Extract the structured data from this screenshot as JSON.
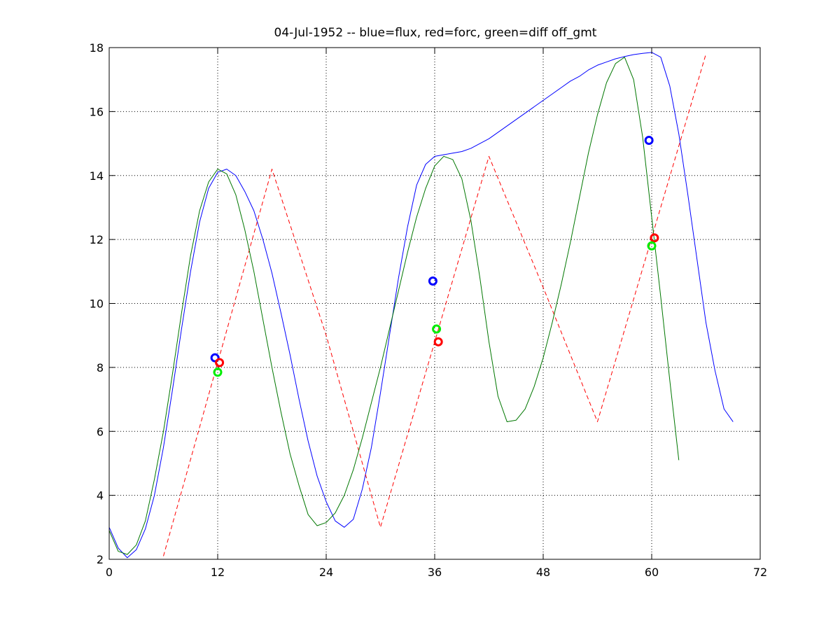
{
  "chart_data": {
    "type": "line",
    "title": "04-Jul-1952 -- blue=flux, red=forc, green=diff off_gmt",
    "xlabel": "",
    "ylabel": "",
    "xlim": [
      0,
      72
    ],
    "ylim": [
      2,
      18
    ],
    "xticks": [
      0,
      12,
      24,
      36,
      48,
      60,
      72
    ],
    "yticks": [
      2,
      4,
      6,
      8,
      10,
      12,
      14,
      16,
      18
    ],
    "grid": true,
    "series": [
      {
        "color": "#0000ff",
        "style": "solid",
        "points": [
          [
            0,
            3.0
          ],
          [
            1,
            2.35
          ],
          [
            2,
            2.05
          ],
          [
            3,
            2.3
          ],
          [
            4,
            2.95
          ],
          [
            5,
            4.0
          ],
          [
            6,
            5.5
          ],
          [
            7,
            7.3
          ],
          [
            8,
            9.2
          ],
          [
            9,
            11.0
          ],
          [
            10,
            12.55
          ],
          [
            11,
            13.6
          ],
          [
            12,
            14.1
          ],
          [
            13,
            14.2
          ],
          [
            14,
            14.0
          ],
          [
            15,
            13.5
          ],
          [
            16,
            12.9
          ],
          [
            17,
            12.0
          ],
          [
            18,
            10.95
          ],
          [
            19,
            9.7
          ],
          [
            20,
            8.4
          ],
          [
            21,
            7.0
          ],
          [
            22,
            5.7
          ],
          [
            23,
            4.6
          ],
          [
            24,
            3.8
          ],
          [
            25,
            3.2
          ],
          [
            26,
            3.0
          ],
          [
            27,
            3.25
          ],
          [
            28,
            4.2
          ],
          [
            29,
            5.5
          ],
          [
            30,
            7.2
          ],
          [
            31,
            9.0
          ],
          [
            32,
            10.8
          ],
          [
            33,
            12.4
          ],
          [
            34,
            13.7
          ],
          [
            35,
            14.35
          ],
          [
            36,
            14.6
          ],
          [
            37,
            14.65
          ],
          [
            38,
            14.7
          ],
          [
            39,
            14.75
          ],
          [
            40,
            14.85
          ],
          [
            41,
            15.0
          ],
          [
            42,
            15.15
          ],
          [
            43,
            15.35
          ],
          [
            44,
            15.55
          ],
          [
            45,
            15.75
          ],
          [
            46,
            15.95
          ],
          [
            47,
            16.15
          ],
          [
            48,
            16.35
          ],
          [
            49,
            16.55
          ],
          [
            50,
            16.75
          ],
          [
            51,
            16.95
          ],
          [
            52,
            17.1
          ],
          [
            53,
            17.3
          ],
          [
            54,
            17.45
          ],
          [
            55,
            17.55
          ],
          [
            56,
            17.65
          ],
          [
            57,
            17.72
          ],
          [
            58,
            17.78
          ],
          [
            59,
            17.82
          ],
          [
            60,
            17.85
          ],
          [
            61,
            17.7
          ],
          [
            62,
            16.8
          ],
          [
            63,
            15.3
          ],
          [
            64,
            13.4
          ],
          [
            65,
            11.4
          ],
          [
            66,
            9.4
          ],
          [
            67,
            7.9
          ],
          [
            68,
            6.7
          ],
          [
            69,
            6.3
          ]
        ]
      },
      {
        "color": "#ff0000",
        "style": "dashed",
        "points": [
          [
            6,
            2.1
          ],
          [
            18,
            14.2
          ],
          [
            24,
            9.0
          ],
          [
            30,
            3.0
          ],
          [
            42,
            14.6
          ],
          [
            48,
            10.5
          ],
          [
            54,
            6.3
          ],
          [
            66,
            17.8
          ]
        ]
      },
      {
        "color": "#007700",
        "style": "solid",
        "points": [
          [
            0,
            2.9
          ],
          [
            1,
            2.25
          ],
          [
            2,
            2.15
          ],
          [
            3,
            2.45
          ],
          [
            4,
            3.2
          ],
          [
            5,
            4.5
          ],
          [
            6,
            6.0
          ],
          [
            7,
            7.8
          ],
          [
            8,
            9.7
          ],
          [
            9,
            11.5
          ],
          [
            10,
            12.9
          ],
          [
            11,
            13.8
          ],
          [
            12,
            14.2
          ],
          [
            13,
            14.05
          ],
          [
            14,
            13.4
          ],
          [
            15,
            12.3
          ],
          [
            16,
            11.0
          ],
          [
            17,
            9.5
          ],
          [
            18,
            8.0
          ],
          [
            19,
            6.6
          ],
          [
            20,
            5.3
          ],
          [
            21,
            4.3
          ],
          [
            22,
            3.4
          ],
          [
            23,
            3.05
          ],
          [
            24,
            3.15
          ],
          [
            25,
            3.45
          ],
          [
            26,
            4.0
          ],
          [
            27,
            4.8
          ],
          [
            28,
            5.8
          ],
          [
            29,
            6.9
          ],
          [
            30,
            8.0
          ],
          [
            31,
            9.2
          ],
          [
            32,
            10.4
          ],
          [
            33,
            11.6
          ],
          [
            34,
            12.7
          ],
          [
            35,
            13.6
          ],
          [
            36,
            14.3
          ],
          [
            37,
            14.6
          ],
          [
            38,
            14.5
          ],
          [
            39,
            13.9
          ],
          [
            40,
            12.6
          ],
          [
            41,
            10.8
          ],
          [
            42,
            8.8
          ],
          [
            43,
            7.1
          ],
          [
            44,
            6.3
          ],
          [
            45,
            6.35
          ],
          [
            46,
            6.7
          ],
          [
            47,
            7.4
          ],
          [
            48,
            8.3
          ],
          [
            49,
            9.4
          ],
          [
            50,
            10.6
          ],
          [
            51,
            11.9
          ],
          [
            52,
            13.3
          ],
          [
            53,
            14.7
          ],
          [
            54,
            15.9
          ],
          [
            55,
            16.9
          ],
          [
            56,
            17.5
          ],
          [
            57,
            17.7
          ],
          [
            58,
            17.0
          ],
          [
            59,
            15.2
          ],
          [
            60,
            12.7
          ],
          [
            61,
            10.2
          ],
          [
            62,
            7.6
          ],
          [
            63,
            5.1
          ]
        ]
      }
    ],
    "markers": [
      {
        "color": "#0000ff",
        "x": 11.7,
        "y": 8.3
      },
      {
        "color": "#ff0000",
        "x": 12.2,
        "y": 8.15
      },
      {
        "color": "#00ee00",
        "x": 12.0,
        "y": 7.85
      },
      {
        "color": "#0000ff",
        "x": 35.8,
        "y": 10.7
      },
      {
        "color": "#00ee00",
        "x": 36.2,
        "y": 9.2
      },
      {
        "color": "#ff0000",
        "x": 36.4,
        "y": 8.8
      },
      {
        "color": "#0000ff",
        "x": 59.7,
        "y": 15.1
      },
      {
        "color": "#ff0000",
        "x": 60.3,
        "y": 12.05
      },
      {
        "color": "#00ee00",
        "x": 60.0,
        "y": 11.8
      }
    ]
  }
}
